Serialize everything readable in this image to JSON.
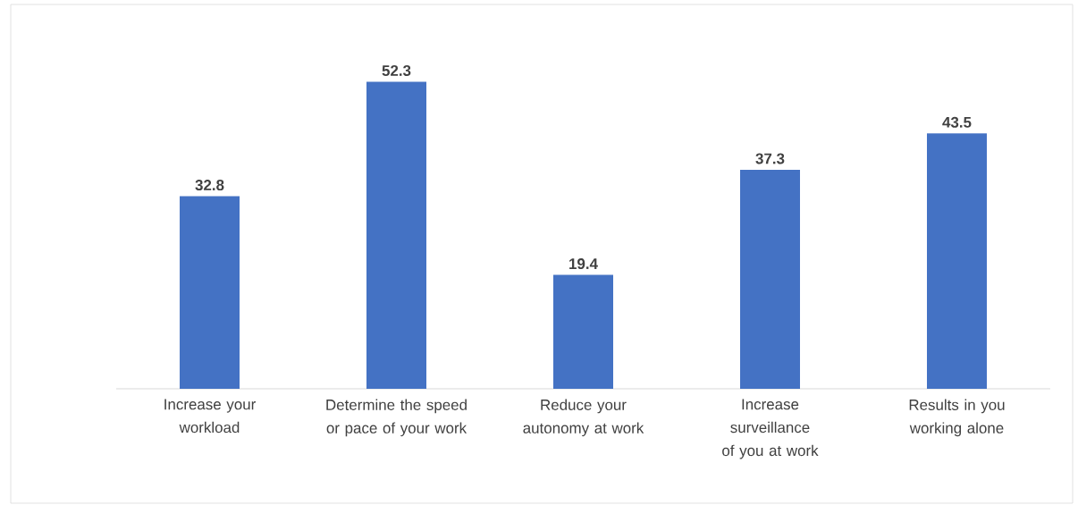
{
  "chart_data": {
    "type": "bar",
    "categories": [
      "Increase your workload",
      "Determine the speed or pace of your work",
      "Reduce your autonomy at work",
      "Increase surveillance of you at work",
      "Results in you working alone"
    ],
    "values": [
      32.8,
      52.3,
      19.4,
      37.3,
      43.5
    ],
    "color": "#4472c4",
    "data_labels": true
  }
}
